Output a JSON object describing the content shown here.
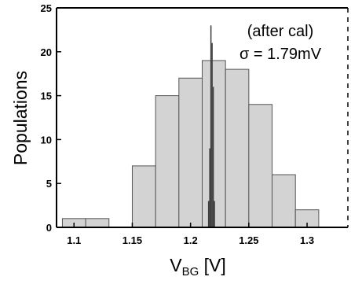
{
  "chart_data": {
    "type": "bar",
    "xlabel": "V",
    "xlabel_sub": "BG",
    "xlabel_unit": "[V]",
    "ylabel": "Populations",
    "xlim": [
      1.085,
      1.335
    ],
    "ylim": [
      0,
      25
    ],
    "xticks": [
      1.1,
      1.15,
      1.2,
      1.25,
      1.3
    ],
    "xtick_labels": [
      "1.1",
      "1.15",
      "1.2",
      "1.25",
      "1.3"
    ],
    "yticks": [
      0,
      5,
      10,
      15,
      20,
      25
    ],
    "ytick_labels": [
      "0",
      "5",
      "10",
      "15",
      "20",
      "25"
    ],
    "grid": false,
    "annotations": [
      "(after cal)",
      "σ = 1.79mV"
    ],
    "colors": {
      "before_fill": "#d3d3d3",
      "before_edge": "#555555",
      "after_fill": "#3c3c3c",
      "axis": "#000000"
    },
    "series": [
      {
        "bin_width": 0.02,
        "x": [
          1.1,
          1.12,
          1.14,
          1.16,
          1.18,
          1.2,
          1.22,
          1.24,
          1.26,
          1.28,
          1.3,
          1.32
        ],
        "values": [
          1,
          1,
          0,
          7,
          15,
          17,
          19,
          18,
          14,
          6,
          2,
          0
        ]
      },
      {
        "bin_width": 0.001,
        "x": [
          1.2155,
          1.2165,
          1.2175,
          1.2185,
          1.2195,
          1.2205
        ],
        "values": [
          3,
          9,
          23,
          21,
          16,
          3
        ]
      }
    ]
  }
}
